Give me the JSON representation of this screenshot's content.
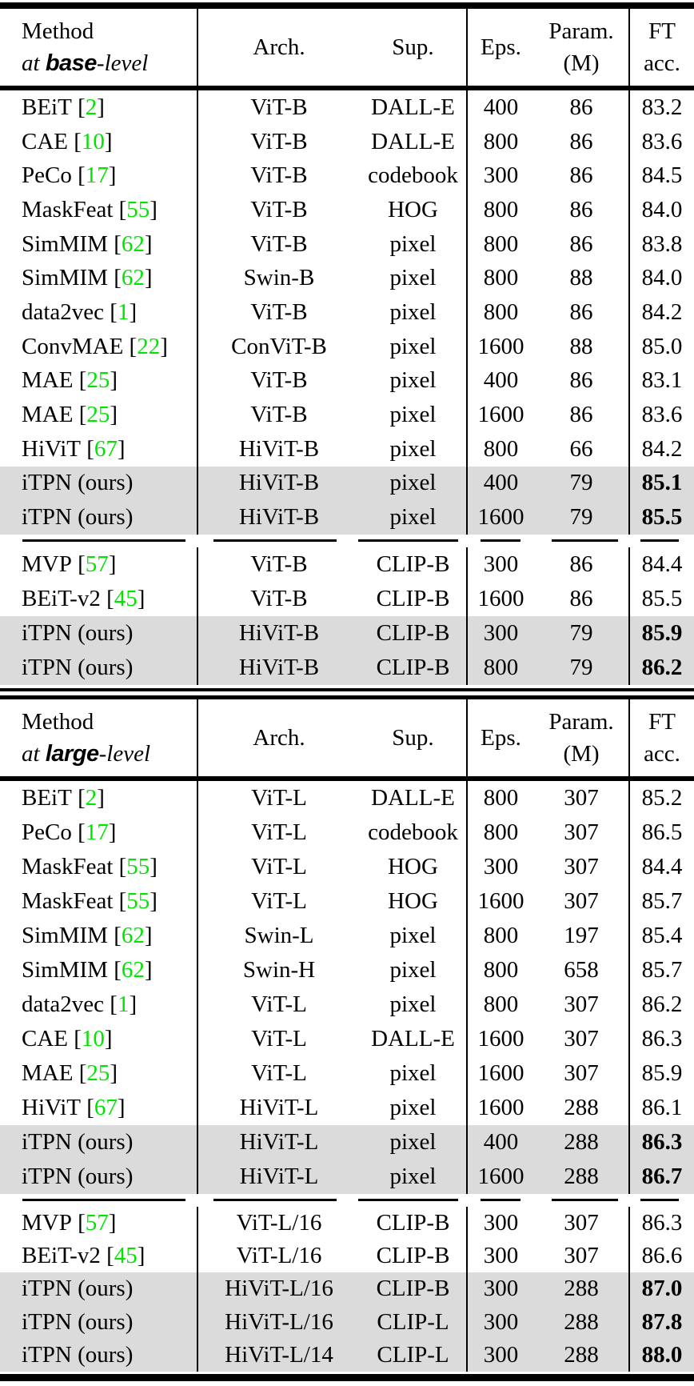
{
  "colors": {
    "citation_green": "#00e400",
    "highlight_gray": "#dbdbdb",
    "rule_black": "#000000"
  },
  "columns": {
    "method": "Method",
    "arch": "Arch.",
    "sup": "Sup.",
    "eps": "Eps.",
    "param1": "Param.",
    "param2": "(M)",
    "ft1": "FT",
    "ft2": "acc."
  },
  "tables": [
    {
      "header": {
        "at_prefix": "at ",
        "level_word": "base",
        "level_suffix": "-level"
      },
      "sections": [
        {
          "rows": [
            {
              "method": "BEiT",
              "cite": "2",
              "arch": "ViT-B",
              "sup": "DALL-E",
              "eps": "400",
              "param": "86",
              "ft": "83.2",
              "highlight": false,
              "bold_ft": false
            },
            {
              "method": "CAE",
              "cite": "10",
              "arch": "ViT-B",
              "sup": "DALL-E",
              "eps": "800",
              "param": "86",
              "ft": "83.6",
              "highlight": false,
              "bold_ft": false
            },
            {
              "method": "PeCo",
              "cite": "17",
              "arch": "ViT-B",
              "sup": "codebook",
              "eps": "300",
              "param": "86",
              "ft": "84.5",
              "highlight": false,
              "bold_ft": false
            },
            {
              "method": "MaskFeat",
              "cite": "55",
              "arch": "ViT-B",
              "sup": "HOG",
              "eps": "800",
              "param": "86",
              "ft": "84.0",
              "highlight": false,
              "bold_ft": false
            },
            {
              "method": "SimMIM",
              "cite": "62",
              "arch": "ViT-B",
              "sup": "pixel",
              "eps": "800",
              "param": "86",
              "ft": "83.8",
              "highlight": false,
              "bold_ft": false
            },
            {
              "method": "SimMIM",
              "cite": "62",
              "arch": "Swin-B",
              "sup": "pixel",
              "eps": "800",
              "param": "88",
              "ft": "84.0",
              "highlight": false,
              "bold_ft": false
            },
            {
              "method": "data2vec",
              "cite": "1",
              "arch": "ViT-B",
              "sup": "pixel",
              "eps": "800",
              "param": "86",
              "ft": "84.2",
              "highlight": false,
              "bold_ft": false
            },
            {
              "method": "ConvMAE",
              "cite": "22",
              "arch": "ConViT-B",
              "sup": "pixel",
              "eps": "1600",
              "param": "88",
              "ft": "85.0",
              "highlight": false,
              "bold_ft": false
            },
            {
              "method": "MAE",
              "cite": "25",
              "arch": "ViT-B",
              "sup": "pixel",
              "eps": "400",
              "param": "86",
              "ft": "83.1",
              "highlight": false,
              "bold_ft": false
            },
            {
              "method": "MAE",
              "cite": "25",
              "arch": "ViT-B",
              "sup": "pixel",
              "eps": "1600",
              "param": "86",
              "ft": "83.6",
              "highlight": false,
              "bold_ft": false
            },
            {
              "method": "HiViT",
              "cite": "67",
              "arch": "HiViT-B",
              "sup": "pixel",
              "eps": "800",
              "param": "66",
              "ft": "84.2",
              "highlight": false,
              "bold_ft": false
            },
            {
              "method": "iTPN (ours)",
              "cite": null,
              "arch": "HiViT-B",
              "sup": "pixel",
              "eps": "400",
              "param": "79",
              "ft": "85.1",
              "highlight": true,
              "bold_ft": true
            },
            {
              "method": "iTPN (ours)",
              "cite": null,
              "arch": "HiViT-B",
              "sup": "pixel",
              "eps": "1600",
              "param": "79",
              "ft": "85.5",
              "highlight": true,
              "bold_ft": true
            }
          ]
        },
        {
          "rows": [
            {
              "method": "MVP",
              "cite": "57",
              "arch": "ViT-B",
              "sup": "CLIP-B",
              "eps": "300",
              "param": "86",
              "ft": "84.4",
              "highlight": false,
              "bold_ft": false
            },
            {
              "method": "BEiT-v2",
              "cite": "45",
              "arch": "ViT-B",
              "sup": "CLIP-B",
              "eps": "1600",
              "param": "86",
              "ft": "85.5",
              "highlight": false,
              "bold_ft": false
            },
            {
              "method": "iTPN (ours)",
              "cite": null,
              "arch": "HiViT-B",
              "sup": "CLIP-B",
              "eps": "300",
              "param": "79",
              "ft": "85.9",
              "highlight": true,
              "bold_ft": true
            },
            {
              "method": "iTPN (ours)",
              "cite": null,
              "arch": "HiViT-B",
              "sup": "CLIP-B",
              "eps": "800",
              "param": "79",
              "ft": "86.2",
              "highlight": true,
              "bold_ft": true
            }
          ]
        }
      ]
    },
    {
      "header": {
        "at_prefix": "at ",
        "level_word": "large",
        "level_suffix": "-level"
      },
      "sections": [
        {
          "rows": [
            {
              "method": "BEiT",
              "cite": "2",
              "arch": "ViT-L",
              "sup": "DALL-E",
              "eps": "800",
              "param": "307",
              "ft": "85.2",
              "highlight": false,
              "bold_ft": false
            },
            {
              "method": "PeCo",
              "cite": "17",
              "arch": "ViT-L",
              "sup": "codebook",
              "eps": "800",
              "param": "307",
              "ft": "86.5",
              "highlight": false,
              "bold_ft": false
            },
            {
              "method": "MaskFeat",
              "cite": "55",
              "arch": "ViT-L",
              "sup": "HOG",
              "eps": "300",
              "param": "307",
              "ft": "84.4",
              "highlight": false,
              "bold_ft": false
            },
            {
              "method": "MaskFeat",
              "cite": "55",
              "arch": "ViT-L",
              "sup": "HOG",
              "eps": "1600",
              "param": "307",
              "ft": "85.7",
              "highlight": false,
              "bold_ft": false
            },
            {
              "method": "SimMIM",
              "cite": "62",
              "arch": "Swin-L",
              "sup": "pixel",
              "eps": "800",
              "param": "197",
              "ft": "85.4",
              "highlight": false,
              "bold_ft": false
            },
            {
              "method": "SimMIM",
              "cite": "62",
              "arch": "Swin-H",
              "sup": "pixel",
              "eps": "800",
              "param": "658",
              "ft": "85.7",
              "highlight": false,
              "bold_ft": false
            },
            {
              "method": "data2vec",
              "cite": "1",
              "arch": "ViT-L",
              "sup": "pixel",
              "eps": "800",
              "param": "307",
              "ft": "86.2",
              "highlight": false,
              "bold_ft": false
            },
            {
              "method": "CAE",
              "cite": "10",
              "arch": "ViT-L",
              "sup": "DALL-E",
              "eps": "1600",
              "param": "307",
              "ft": "86.3",
              "highlight": false,
              "bold_ft": false
            },
            {
              "method": "MAE",
              "cite": "25",
              "arch": "ViT-L",
              "sup": "pixel",
              "eps": "1600",
              "param": "307",
              "ft": "85.9",
              "highlight": false,
              "bold_ft": false
            },
            {
              "method": "HiViT",
              "cite": "67",
              "arch": "HiViT-L",
              "sup": "pixel",
              "eps": "1600",
              "param": "288",
              "ft": "86.1",
              "highlight": false,
              "bold_ft": false
            },
            {
              "method": "iTPN (ours)",
              "cite": null,
              "arch": "HiViT-L",
              "sup": "pixel",
              "eps": "400",
              "param": "288",
              "ft": "86.3",
              "highlight": true,
              "bold_ft": true
            },
            {
              "method": "iTPN (ours)",
              "cite": null,
              "arch": "HiViT-L",
              "sup": "pixel",
              "eps": "1600",
              "param": "288",
              "ft": "86.7",
              "highlight": true,
              "bold_ft": true
            }
          ]
        },
        {
          "rows": [
            {
              "method": "MVP",
              "cite": "57",
              "arch": "ViT-L/16",
              "sup": "CLIP-B",
              "eps": "300",
              "param": "307",
              "ft": "86.3",
              "highlight": false,
              "bold_ft": false
            },
            {
              "method": "BEiT-v2",
              "cite": "45",
              "arch": "ViT-L/16",
              "sup": "CLIP-B",
              "eps": "300",
              "param": "307",
              "ft": "86.6",
              "highlight": false,
              "bold_ft": false
            },
            {
              "method": "iTPN (ours)",
              "cite": null,
              "arch": "HiViT-L/16",
              "sup": "CLIP-B",
              "eps": "300",
              "param": "288",
              "ft": "87.0",
              "highlight": true,
              "bold_ft": true
            },
            {
              "method": "iTPN (ours)",
              "cite": null,
              "arch": "HiViT-L/16",
              "sup": "CLIP-L",
              "eps": "300",
              "param": "288",
              "ft": "87.8",
              "highlight": true,
              "bold_ft": true
            },
            {
              "method": "iTPN (ours)",
              "cite": null,
              "arch": "HiViT-L/14",
              "sup": "CLIP-L",
              "eps": "300",
              "param": "288",
              "ft": "88.0",
              "highlight": true,
              "bold_ft": true
            }
          ]
        }
      ]
    }
  ]
}
